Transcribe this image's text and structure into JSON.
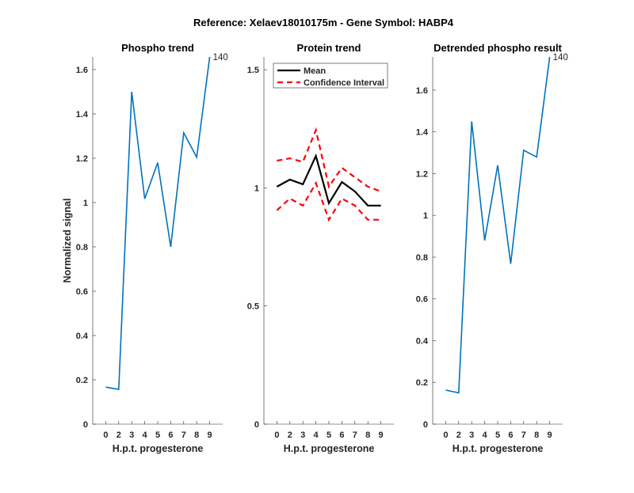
{
  "figure_title": "Reference:  Xelaev18010175m - Gene Symbol:  HABP4",
  "chart_data": [
    {
      "type": "line",
      "title": "Phospho trend",
      "xlabel": "H.p.t. progesterone",
      "ylabel": "Normalized signal",
      "categories": [
        "0",
        "2",
        "3",
        "4",
        "5",
        "6",
        "7",
        "8",
        "9"
      ],
      "ylim": [
        0,
        1.657
      ],
      "yticks": [
        0,
        0.2,
        0.4,
        0.6,
        0.8,
        1,
        1.2,
        1.4,
        1.6
      ],
      "ytick_labels": [
        "0",
        "0.2",
        "0.4",
        "0.6",
        "0.8",
        "1",
        "1.2",
        "1.4",
        "1.6"
      ],
      "series": [
        {
          "name": "phospho",
          "color": "#0072BD",
          "values": [
            0.167,
            0.157,
            1.5,
            1.017,
            1.18,
            0.8,
            1.315,
            1.205,
            1.657
          ]
        }
      ],
      "annotation": "140"
    },
    {
      "type": "line",
      "title": "Protein trend",
      "xlabel": "H.p.t. progesterone",
      "ylabel": "",
      "categories": [
        "0",
        "2",
        "3",
        "4",
        "5",
        "6",
        "7",
        "8",
        "9"
      ],
      "ylim": [
        0,
        1.554
      ],
      "yticks": [
        0,
        0.5,
        1,
        1.5
      ],
      "ytick_labels": [
        "0",
        "0.5",
        "1",
        "1.5"
      ],
      "legend": {
        "placement": "top",
        "entries": [
          "Mean",
          "Confidence Interval"
        ]
      },
      "series": [
        {
          "name": "Mean",
          "color": "#000000",
          "style": "solid",
          "values": [
            1.005,
            1.035,
            1.015,
            1.135,
            0.935,
            1.025,
            0.985,
            0.925,
            0.925
          ]
        },
        {
          "name": "Confidence Interval upper",
          "color": "#FF0000",
          "style": "dashed",
          "values": [
            1.115,
            1.125,
            1.11,
            1.245,
            1.005,
            1.085,
            1.045,
            1.005,
            0.985
          ]
        },
        {
          "name": "Confidence Interval lower",
          "color": "#FF0000",
          "style": "dashed",
          "values": [
            0.905,
            0.955,
            0.925,
            1.02,
            0.865,
            0.955,
            0.925,
            0.865,
            0.865
          ]
        }
      ]
    },
    {
      "type": "line",
      "title": "Detrended phospho result",
      "xlabel": "H.p.t. progesterone",
      "ylabel": "",
      "categories": [
        "0",
        "2",
        "3",
        "4",
        "5",
        "6",
        "7",
        "8",
        "9"
      ],
      "ylim": [
        0,
        1.759
      ],
      "yticks": [
        0,
        0.2,
        0.4,
        0.6,
        0.8,
        1,
        1.2,
        1.4,
        1.6
      ],
      "ytick_labels": [
        "0",
        "0.2",
        "0.4",
        "0.6",
        "0.8",
        "1",
        "1.2",
        "1.4",
        "1.6"
      ],
      "series": [
        {
          "name": "detrended",
          "color": "#0072BD",
          "values": [
            0.163,
            0.15,
            1.45,
            0.88,
            1.24,
            0.768,
            1.312,
            1.28,
            1.759
          ]
        }
      ],
      "annotation": "140"
    }
  ]
}
